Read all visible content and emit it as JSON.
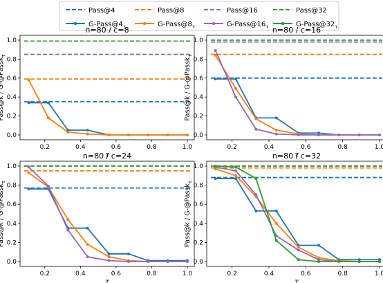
{
  "legend": {
    "entries": [
      {
        "label": "Pass@4",
        "color": "#1f77b4",
        "style": "dashed"
      },
      {
        "label": "G-Pass@4",
        "sub": "τ",
        "color": "#1f77b4",
        "style": "solid-marker"
      },
      {
        "label": "Pass@8",
        "color": "#ff7f0e",
        "style": "dashed"
      },
      {
        "label": "G-Pass@8",
        "sub": "τ",
        "color": "#ff7f0e",
        "style": "solid-marker"
      },
      {
        "label": "Pass@16",
        "color": "#9467bd",
        "style": "dashed"
      },
      {
        "label": "G-Pass@16",
        "sub": "τ",
        "color": "#9467bd",
        "style": "solid-marker"
      },
      {
        "label": "Pass@32",
        "color": "#2ca02c",
        "style": "dashed"
      },
      {
        "label": "G-Pass@32",
        "sub": "τ",
        "color": "#2ca02c",
        "style": "solid-marker"
      }
    ]
  },
  "colors": {
    "k4": "#1f77b4",
    "k8": "#ff7f0e",
    "k16": "#9467bd",
    "k32": "#2ca02c"
  },
  "chart_data": [
    {
      "type": "line",
      "title": "n=80 / c=8",
      "xlabel": "τ",
      "ylabel": "Pass@k / G-@Passk",
      "ylabel_sub": "τ",
      "xlim": [
        0.1,
        1.0
      ],
      "ylim": [
        0.0,
        1.0
      ],
      "xticks": [
        "0.2",
        "0.4",
        "0.6",
        "0.8",
        "1.0"
      ],
      "yticks": [
        "0.0",
        "0.2",
        "0.4",
        "0.6",
        "0.8",
        "1.0"
      ],
      "x": [
        0.11,
        0.22,
        0.33,
        0.44,
        0.56,
        0.67,
        0.78,
        0.89,
        1.0
      ],
      "series": [
        {
          "name": "Pass@4",
          "kind": "pass",
          "color": "#1f77b4",
          "value": 0.35
        },
        {
          "name": "Pass@8",
          "kind": "pass",
          "color": "#ff7f0e",
          "value": 0.59
        },
        {
          "name": "Pass@16",
          "kind": "pass",
          "color": "#9467bd",
          "value": 0.85
        },
        {
          "name": "Pass@32",
          "kind": "pass",
          "color": "#2ca02c",
          "value": 0.99
        },
        {
          "name": "G-Pass@4τ",
          "kind": "gpass",
          "color": "#1f77b4",
          "values": [
            0.34,
            0.34,
            0.05,
            0.05,
            0.0,
            0.0,
            0.0,
            0.0,
            0.0
          ]
        },
        {
          "name": "G-Pass@8τ",
          "kind": "gpass",
          "color": "#ff7f0e",
          "values": [
            0.58,
            0.18,
            0.03,
            0.01,
            0.0,
            0.0,
            0.0,
            0.0,
            0.0
          ]
        }
      ]
    },
    {
      "type": "line",
      "title": "n=80 / c=16",
      "xlabel": "τ",
      "ylabel": "Pass@k / G-@Passk",
      "ylabel_sub": "τ",
      "xlim": [
        0.1,
        1.0
      ],
      "ylim": [
        0.0,
        1.0
      ],
      "xticks": [
        "0.2",
        "0.4",
        "0.6",
        "0.8",
        "1.0"
      ],
      "yticks": [
        "0.0",
        "0.2",
        "0.4",
        "0.6",
        "0.8",
        "1.0"
      ],
      "x": [
        0.11,
        0.22,
        0.33,
        0.44,
        0.56,
        0.67,
        0.78,
        0.89,
        1.0
      ],
      "series": [
        {
          "name": "Pass@4",
          "kind": "pass",
          "color": "#1f77b4",
          "value": 0.6
        },
        {
          "name": "Pass@8",
          "kind": "pass",
          "color": "#ff7f0e",
          "value": 0.85
        },
        {
          "name": "Pass@16",
          "kind": "pass",
          "color": "#9467bd",
          "value": 0.98
        },
        {
          "name": "Pass@32",
          "kind": "pass",
          "color": "#2ca02c",
          "value": 1.0
        },
        {
          "name": "G-Pass@4τ",
          "kind": "gpass",
          "color": "#1f77b4",
          "values": [
            0.59,
            0.59,
            0.18,
            0.18,
            0.02,
            0.02,
            0.0,
            0.0,
            0.0
          ]
        },
        {
          "name": "G-Pass@8τ",
          "kind": "gpass",
          "color": "#ff7f0e",
          "values": [
            0.84,
            0.49,
            0.17,
            0.05,
            0.01,
            0.0,
            0.0,
            0.0,
            0.0
          ]
        },
        {
          "name": "G-Pass@16τ",
          "kind": "gpass",
          "color": "#9467bd",
          "values": [
            0.89,
            0.4,
            0.06,
            0.01,
            0.0,
            0.0,
            0.0,
            0.0,
            0.0
          ]
        }
      ]
    },
    {
      "type": "line",
      "title": "n=80 / c=24",
      "xlabel": "τ",
      "ylabel": "Pass@k / G-@Passk",
      "ylabel_sub": "τ",
      "xlim": [
        0.1,
        1.0
      ],
      "ylim": [
        0.0,
        1.0
      ],
      "xticks": [
        "0.2",
        "0.4",
        "0.6",
        "0.8",
        "1.0"
      ],
      "yticks": [
        "0.0",
        "0.2",
        "0.4",
        "0.6",
        "0.8",
        "1.0"
      ],
      "x": [
        0.11,
        0.22,
        0.33,
        0.44,
        0.56,
        0.67,
        0.78,
        0.89,
        1.0
      ],
      "series": [
        {
          "name": "Pass@4",
          "kind": "pass",
          "color": "#1f77b4",
          "value": 0.77
        },
        {
          "name": "Pass@8",
          "kind": "pass",
          "color": "#ff7f0e",
          "value": 0.95
        },
        {
          "name": "Pass@16",
          "kind": "pass",
          "color": "#9467bd",
          "value": 1.0
        },
        {
          "name": "Pass@32",
          "kind": "pass",
          "color": "#2ca02c",
          "value": 1.0
        },
        {
          "name": "G-Pass@4τ",
          "kind": "gpass",
          "color": "#1f77b4",
          "values": [
            0.76,
            0.76,
            0.35,
            0.35,
            0.08,
            0.08,
            0.01,
            0.01,
            0.01
          ]
        },
        {
          "name": "G-Pass@8τ",
          "kind": "gpass",
          "color": "#ff7f0e",
          "values": [
            0.93,
            0.78,
            0.44,
            0.18,
            0.05,
            0.01,
            0.0,
            0.0,
            0.0
          ]
        },
        {
          "name": "G-Pass@16τ",
          "kind": "gpass",
          "color": "#9467bd",
          "values": [
            0.99,
            0.79,
            0.33,
            0.05,
            0.01,
            0.0,
            0.0,
            0.0,
            0.0
          ]
        }
      ]
    },
    {
      "type": "line",
      "title": "n=80 / c=32",
      "xlabel": "τ",
      "ylabel": "Pass@k / G-@Passk",
      "ylabel_sub": "τ",
      "xlim": [
        0.1,
        1.0
      ],
      "ylim": [
        0.0,
        1.0
      ],
      "xticks": [
        "0.2",
        "0.4",
        "0.6",
        "0.8",
        "1.0"
      ],
      "yticks": [
        "0.0",
        "0.2",
        "0.4",
        "0.6",
        "0.8",
        "1.0"
      ],
      "x": [
        0.11,
        0.22,
        0.33,
        0.44,
        0.56,
        0.67,
        0.78,
        0.89,
        1.0
      ],
      "series": [
        {
          "name": "Pass@4",
          "kind": "pass",
          "color": "#1f77b4",
          "value": 0.88
        },
        {
          "name": "Pass@8",
          "kind": "pass",
          "color": "#ff7f0e",
          "value": 0.98
        },
        {
          "name": "Pass@16",
          "kind": "pass",
          "color": "#9467bd",
          "value": 1.0
        },
        {
          "name": "Pass@32",
          "kind": "pass",
          "color": "#2ca02c",
          "value": 1.0
        },
        {
          "name": "G-Pass@4τ",
          "kind": "gpass",
          "color": "#1f77b4",
          "values": [
            0.87,
            0.87,
            0.53,
            0.53,
            0.17,
            0.17,
            0.02,
            0.02,
            0.02
          ]
        },
        {
          "name": "G-Pass@8τ",
          "kind": "gpass",
          "color": "#ff7f0e",
          "values": [
            0.97,
            0.9,
            0.68,
            0.4,
            0.15,
            0.04,
            0.01,
            0.0,
            0.0
          ]
        },
        {
          "name": "G-Pass@16τ",
          "kind": "gpass",
          "color": "#9467bd",
          "values": [
            0.99,
            0.95,
            0.7,
            0.27,
            0.12,
            0.02,
            0.0,
            0.0,
            0.0
          ]
        },
        {
          "name": "G-Pass@32τ",
          "kind": "gpass",
          "color": "#2ca02c",
          "values": [
            1.0,
            0.99,
            0.87,
            0.22,
            0.02,
            0.0,
            0.0,
            0.0,
            0.0
          ]
        }
      ]
    }
  ]
}
